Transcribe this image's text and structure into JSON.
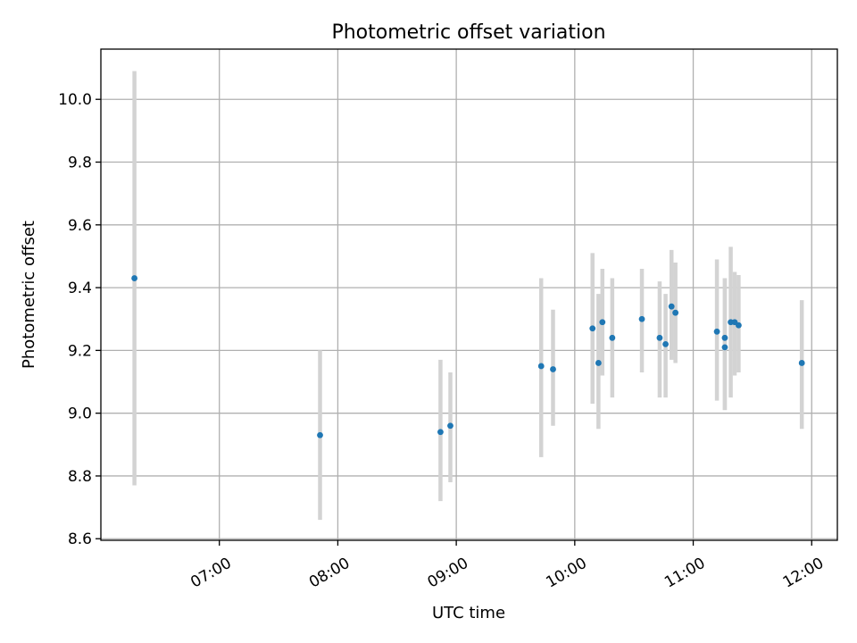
{
  "chart_data": {
    "type": "scatter",
    "title": "Photometric offset variation",
    "xlabel": "UTC time",
    "ylabel": "Photometric offset",
    "x_unit": "hours UTC",
    "xlim": [
      "06:00",
      "12:13"
    ],
    "ylim": [
      8.595,
      10.16
    ],
    "y_ticks": [
      "8.6",
      "8.8",
      "9.0",
      "9.2",
      "9.4",
      "9.6",
      "9.8",
      "10.0"
    ],
    "x_ticks": [
      "07:00",
      "08:00",
      "09:00",
      "10:00",
      "11:00",
      "12:00"
    ],
    "grid": true,
    "marker_color": "#1f77b4",
    "errorbar_color": "#d3d3d3",
    "points": [
      {
        "time": "06:17",
        "y": 9.43,
        "y_low": 8.77,
        "y_high": 10.09
      },
      {
        "time": "07:51",
        "y": 8.93,
        "y_low": 8.66,
        "y_high": 9.2
      },
      {
        "time": "08:52",
        "y": 8.94,
        "y_low": 8.72,
        "y_high": 9.17
      },
      {
        "time": "08:57",
        "y": 8.96,
        "y_low": 8.78,
        "y_high": 9.13
      },
      {
        "time": "09:43",
        "y": 9.15,
        "y_low": 8.86,
        "y_high": 9.43
      },
      {
        "time": "09:49",
        "y": 9.14,
        "y_low": 8.96,
        "y_high": 9.33
      },
      {
        "time": "10:09",
        "y": 9.27,
        "y_low": 9.03,
        "y_high": 9.51
      },
      {
        "time": "10:12",
        "y": 9.16,
        "y_low": 8.95,
        "y_high": 9.38
      },
      {
        "time": "10:14",
        "y": 9.29,
        "y_low": 9.12,
        "y_high": 9.46
      },
      {
        "time": "10:19",
        "y": 9.24,
        "y_low": 9.05,
        "y_high": 9.43
      },
      {
        "time": "10:34",
        "y": 9.3,
        "y_low": 9.13,
        "y_high": 9.46
      },
      {
        "time": "10:43",
        "y": 9.24,
        "y_low": 9.05,
        "y_high": 9.42
      },
      {
        "time": "10:46",
        "y": 9.22,
        "y_low": 9.05,
        "y_high": 9.38
      },
      {
        "time": "10:49",
        "y": 9.34,
        "y_low": 9.17,
        "y_high": 9.52
      },
      {
        "time": "10:51",
        "y": 9.32,
        "y_low": 9.16,
        "y_high": 9.48
      },
      {
        "time": "11:12",
        "y": 9.26,
        "y_low": 9.04,
        "y_high": 9.49
      },
      {
        "time": "11:16",
        "y": 9.24,
        "y_low": 9.01,
        "y_high": 9.43
      },
      {
        "time": "11:16",
        "y": 9.21,
        "y_low": 9.01,
        "y_high": 9.43
      },
      {
        "time": "11:19",
        "y": 9.29,
        "y_low": 9.05,
        "y_high": 9.53
      },
      {
        "time": "11:21",
        "y": 9.29,
        "y_low": 9.12,
        "y_high": 9.45
      },
      {
        "time": "11:23",
        "y": 9.28,
        "y_low": 9.13,
        "y_high": 9.44
      },
      {
        "time": "11:55",
        "y": 9.16,
        "y_low": 8.95,
        "y_high": 9.36
      }
    ]
  }
}
